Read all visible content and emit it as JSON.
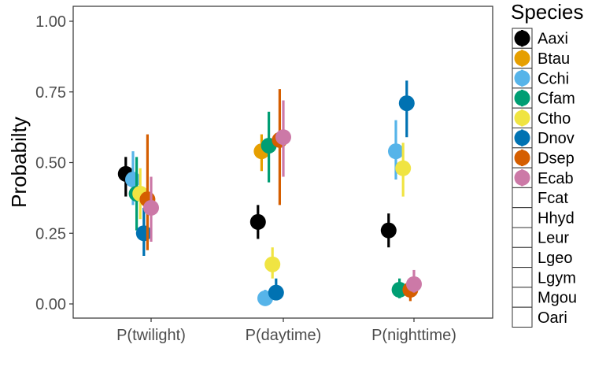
{
  "chart_data": {
    "type": "scatter",
    "subtype": "pointrange",
    "title": "",
    "xlabel": "",
    "ylabel": "Probabilty",
    "ylim": [
      -0.04,
      1.04
    ],
    "yticks": [
      "0.00",
      "0.25",
      "0.50",
      "0.75",
      "1.00"
    ],
    "grid": false,
    "legend_title": "Species",
    "legend_position": "right",
    "categories": [
      "P(twilight)",
      "P(daytime)",
      "P(nighttime)"
    ],
    "series": [
      {
        "name": "Aaxi",
        "color": "#000000",
        "points": [
          {
            "x": "P(twilight)",
            "y": 0.46,
            "lo": 0.38,
            "hi": 0.52
          },
          {
            "x": "P(daytime)",
            "y": 0.29,
            "lo": 0.23,
            "hi": 0.35
          },
          {
            "x": "P(nighttime)",
            "y": 0.26,
            "lo": 0.2,
            "hi": 0.32
          }
        ]
      },
      {
        "name": "Btau",
        "color": "#E69F00",
        "points": [
          {
            "x": "P(daytime)",
            "y": 0.54,
            "lo": 0.47,
            "hi": 0.6
          }
        ]
      },
      {
        "name": "Cchi",
        "color": "#56B4E9",
        "points": [
          {
            "x": "P(twilight)",
            "y": 0.44,
            "lo": 0.35,
            "hi": 0.54
          },
          {
            "x": "P(daytime)",
            "y": 0.02,
            "lo": 0.0,
            "hi": 0.05
          },
          {
            "x": "P(nighttime)",
            "y": 0.54,
            "lo": 0.44,
            "hi": 0.65
          }
        ]
      },
      {
        "name": "Cfam",
        "color": "#009E73",
        "points": [
          {
            "x": "P(twilight)",
            "y": 0.39,
            "lo": 0.26,
            "hi": 0.52
          },
          {
            "x": "P(daytime)",
            "y": 0.56,
            "lo": 0.43,
            "hi": 0.68
          },
          {
            "x": "P(nighttime)",
            "y": 0.05,
            "lo": 0.02,
            "hi": 0.09
          }
        ]
      },
      {
        "name": "Ctho",
        "color": "#F0E442",
        "points": [
          {
            "x": "P(twilight)",
            "y": 0.39,
            "lo": 0.3,
            "hi": 0.48
          },
          {
            "x": "P(daytime)",
            "y": 0.14,
            "lo": 0.09,
            "hi": 0.2
          },
          {
            "x": "P(nighttime)",
            "y": 0.48,
            "lo": 0.38,
            "hi": 0.57
          }
        ]
      },
      {
        "name": "Dnov",
        "color": "#0072B2",
        "points": [
          {
            "x": "P(twilight)",
            "y": 0.25,
            "lo": 0.17,
            "hi": 0.34
          },
          {
            "x": "P(daytime)",
            "y": 0.04,
            "lo": 0.02,
            "hi": 0.09
          },
          {
            "x": "P(nighttime)",
            "y": 0.71,
            "lo": 0.59,
            "hi": 0.79
          }
        ]
      },
      {
        "name": "Dsep",
        "color": "#D55E00",
        "points": [
          {
            "x": "P(twilight)",
            "y": 0.37,
            "lo": 0.19,
            "hi": 0.6
          },
          {
            "x": "P(daytime)",
            "y": 0.58,
            "lo": 0.35,
            "hi": 0.76
          },
          {
            "x": "P(nighttime)",
            "y": 0.05,
            "lo": 0.01,
            "hi": 0.09
          }
        ]
      },
      {
        "name": "Ecab",
        "color": "#CC79A7",
        "points": [
          {
            "x": "P(twilight)",
            "y": 0.34,
            "lo": 0.22,
            "hi": 0.45
          },
          {
            "x": "P(daytime)",
            "y": 0.59,
            "lo": 0.45,
            "hi": 0.72
          },
          {
            "x": "P(nighttime)",
            "y": 0.07,
            "lo": 0.04,
            "hi": 0.12
          }
        ]
      },
      {
        "name": "Fcat",
        "color": "#ffffff",
        "points": []
      },
      {
        "name": "Hhyd",
        "color": "#ffffff",
        "points": []
      },
      {
        "name": "Leur",
        "color": "#ffffff",
        "points": []
      },
      {
        "name": "Lgeo",
        "color": "#ffffff",
        "points": []
      },
      {
        "name": "Lgym",
        "color": "#ffffff",
        "points": []
      },
      {
        "name": "Mgou",
        "color": "#ffffff",
        "points": []
      },
      {
        "name": "Oari",
        "color": "#ffffff",
        "points": []
      }
    ]
  }
}
